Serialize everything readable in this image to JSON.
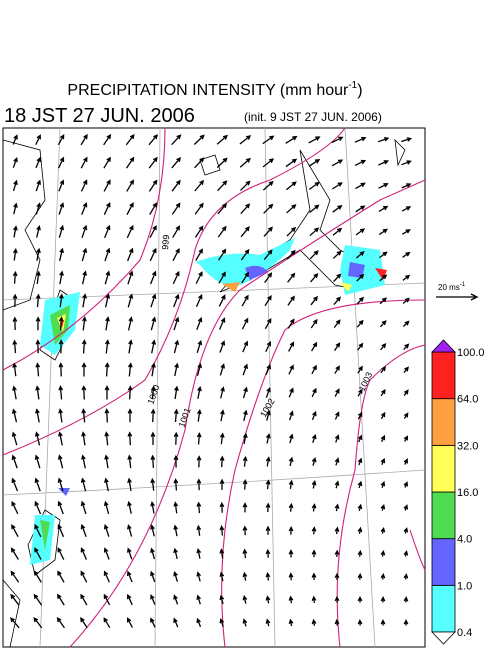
{
  "header": {
    "title": "PRECIPITATION INTENSITY (mm hour",
    "title_sup": "-1",
    "title_end": ")",
    "time": "18 JST 27 JUN. 2006",
    "init": "(init. 9 JST 27 JUN. 2006)"
  },
  "scale_arrow": {
    "label": "20 ms",
    "label_sup": "-1"
  },
  "isobars": [
    "999",
    "1000",
    "1001",
    "1002",
    "1003"
  ],
  "colorbar": {
    "ticks": [
      {
        "value": 0.4,
        "label": "0.4"
      },
      {
        "value": 1,
        "label": "1.0"
      },
      {
        "value": 4,
        "label": "4.0"
      },
      {
        "value": 16,
        "label": "16.0"
      },
      {
        "value": 32,
        "label": "32.0"
      },
      {
        "value": 64,
        "label": "64.0"
      },
      {
        "value": 100,
        "label": "100.0"
      }
    ],
    "colors": [
      "#55ffff",
      "#6464ff",
      "#50dc50",
      "#ffff55",
      "#ffa040",
      "#ff2020"
    ],
    "over_color": "#a020f0"
  }
}
